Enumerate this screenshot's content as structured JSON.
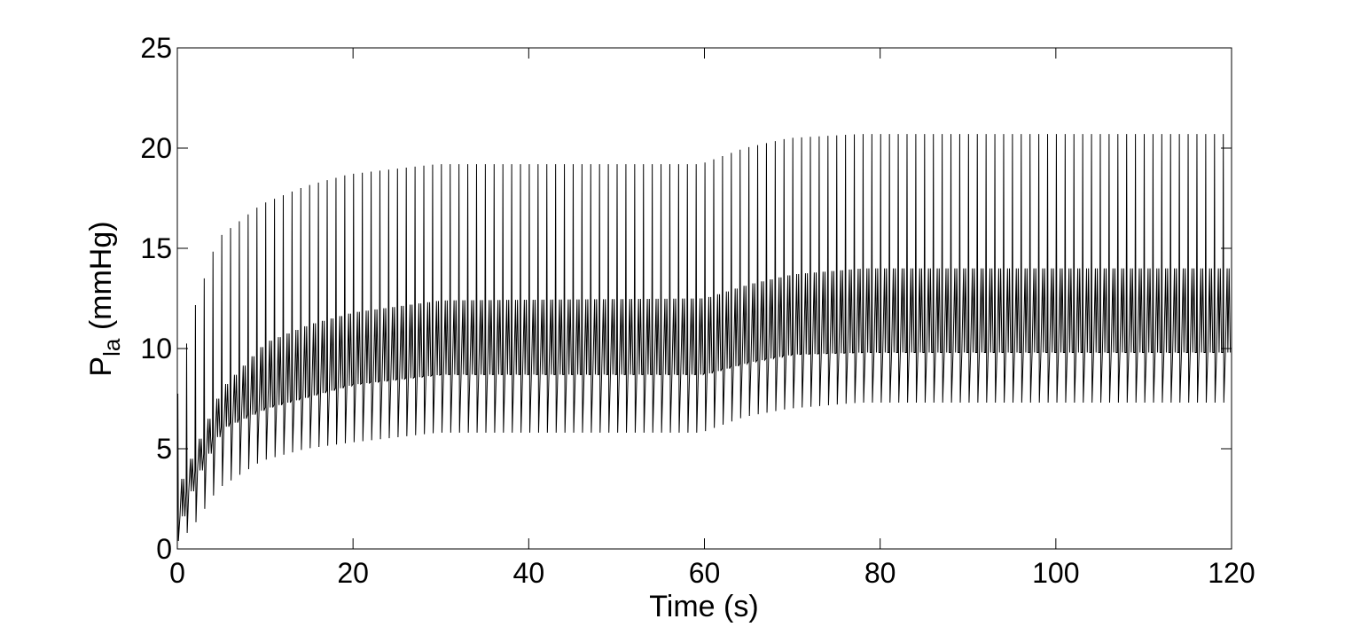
{
  "chart_data": {
    "type": "line",
    "title": "",
    "xlabel": "Time (s)",
    "ylabel": {
      "main": "P",
      "subscript": "la",
      "unit": " (mmHg)"
    },
    "xlim": [
      0,
      120
    ],
    "ylim": [
      0,
      25
    ],
    "xticks": [
      0,
      20,
      40,
      60,
      80,
      100,
      120
    ],
    "yticks": [
      0,
      5,
      10,
      15,
      20,
      25
    ],
    "xtick_labels": [
      "0",
      "20",
      "40",
      "60",
      "80",
      "100",
      "120"
    ],
    "ytick_labels": [
      "0",
      "5",
      "10",
      "15",
      "20",
      "25"
    ],
    "grid": false,
    "legend": null,
    "line_color": "#000000",
    "series": [
      {
        "signal": "periodic oscillation, roughly one cycle per second",
        "cycle_period_s": 1.0,
        "envelope_breakpoints_t": [
          0,
          2,
          5,
          10,
          15,
          20,
          30,
          60,
          65,
          70,
          78,
          85,
          120
        ],
        "upper_peak": [
          6.5,
          11.5,
          15.5,
          17.2,
          18.1,
          18.7,
          19.2,
          19.2,
          20.0,
          20.5,
          20.7,
          20.7,
          20.7
        ],
        "upper_plateau": [
          3.0,
          5.0,
          8.0,
          10.3,
          11.2,
          11.8,
          12.4,
          12.5,
          13.2,
          13.7,
          14.0,
          14.0,
          14.0
        ],
        "lower_plateau": [
          1.0,
          3.5,
          6.0,
          7.0,
          7.6,
          8.2,
          8.7,
          8.7,
          9.3,
          9.7,
          9.8,
          9.8,
          9.8
        ],
        "trough": [
          0.2,
          1.0,
          3.0,
          4.4,
          5.0,
          5.3,
          5.8,
          5.8,
          6.6,
          7.0,
          7.3,
          7.3,
          7.3
        ]
      }
    ]
  }
}
